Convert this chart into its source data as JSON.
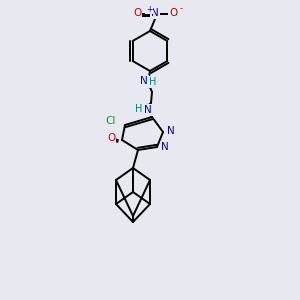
{
  "bg_color": "#e8e8f0",
  "atom_colors": {
    "N": "#0000cc",
    "O": "#cc0000",
    "Cl": "#00aa00",
    "H": "#008080"
  }
}
